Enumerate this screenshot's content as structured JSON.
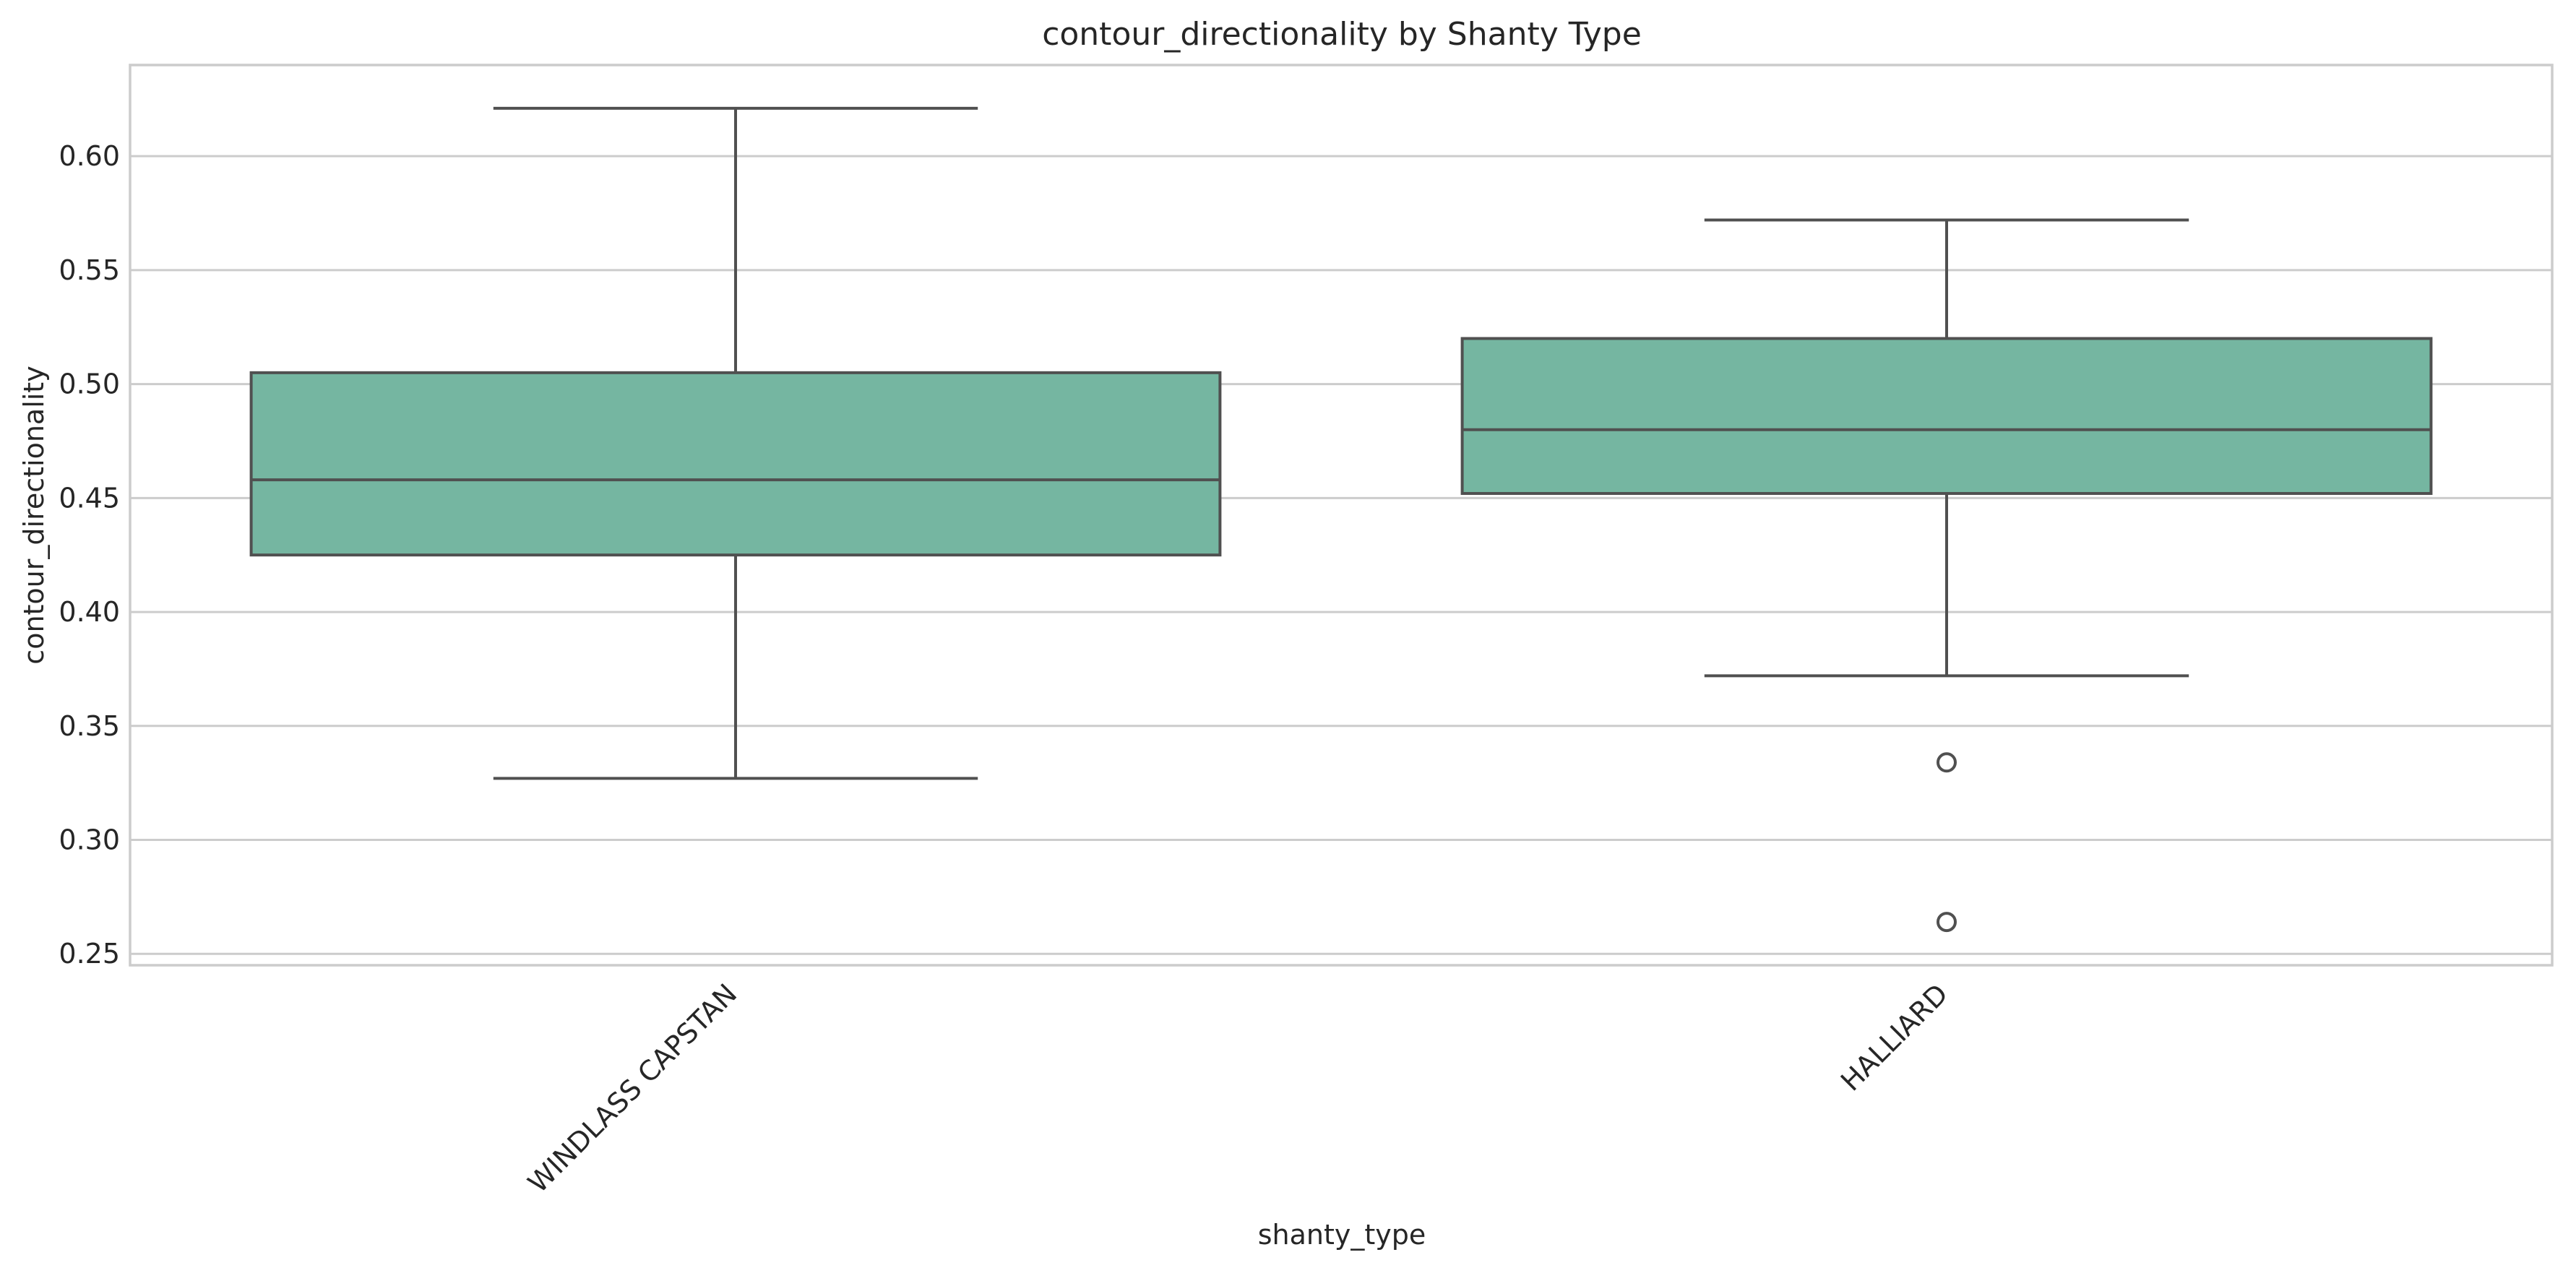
{
  "chart_data": {
    "type": "box",
    "title": "contour_directionality by Shanty Type",
    "xlabel": "shanty_type",
    "ylabel": "contour_directionality",
    "ylim": [
      0.245,
      0.64
    ],
    "yticks": [
      "0.25",
      "0.30",
      "0.35",
      "0.40",
      "0.45",
      "0.50",
      "0.55",
      "0.60"
    ],
    "grid": "horizontal",
    "box_color": "#75b6a1",
    "line_color": "#505050",
    "categories": [
      "WINDLASS CAPSTAN",
      "HALLIARD"
    ],
    "boxes": [
      {
        "category": "WINDLASS CAPSTAN",
        "whisker_low": 0.327,
        "q1": 0.425,
        "median": 0.458,
        "q3": 0.505,
        "whisker_high": 0.621,
        "outliers": []
      },
      {
        "category": "HALLIARD",
        "whisker_low": 0.372,
        "q1": 0.452,
        "median": 0.48,
        "q3": 0.52,
        "whisker_high": 0.572,
        "outliers": [
          0.334,
          0.264
        ]
      }
    ]
  }
}
